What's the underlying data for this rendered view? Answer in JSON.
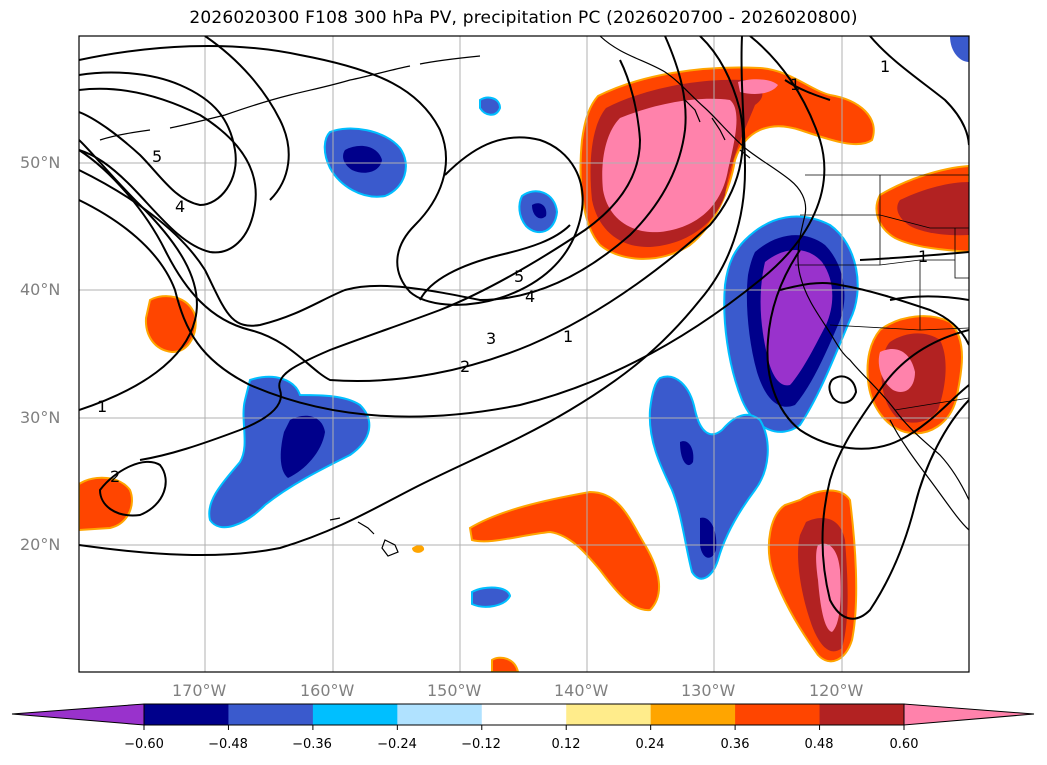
{
  "title": "2026020300 F108 300 hPa PV, precipitation PC (2026020700 - 2026020800)",
  "map": {
    "lat_labels": [
      "50°N",
      "40°N",
      "30°N",
      "20°N"
    ],
    "lon_labels": [
      "170°W",
      "160°W",
      "150°W",
      "140°W",
      "130°W",
      "120°W"
    ],
    "contour_labels": [
      "1",
      "1",
      "2",
      "2",
      "3",
      "4",
      "5",
      "4",
      "5",
      "1",
      "1",
      "1"
    ]
  },
  "colorbar": {
    "colors": [
      "#9932cc",
      "#00008b",
      "#3a5acd",
      "#00bfff",
      "#b0e2ff",
      "#ffffff",
      "#ffec8b",
      "#ffa500",
      "#ff4500",
      "#b22222",
      "#ff82ab"
    ],
    "tick_labels": [
      "−0.60",
      "−0.48",
      "−0.36",
      "−0.24",
      "−0.12",
      "0.12",
      "0.24",
      "0.36",
      "0.48",
      "0.60"
    ]
  }
}
